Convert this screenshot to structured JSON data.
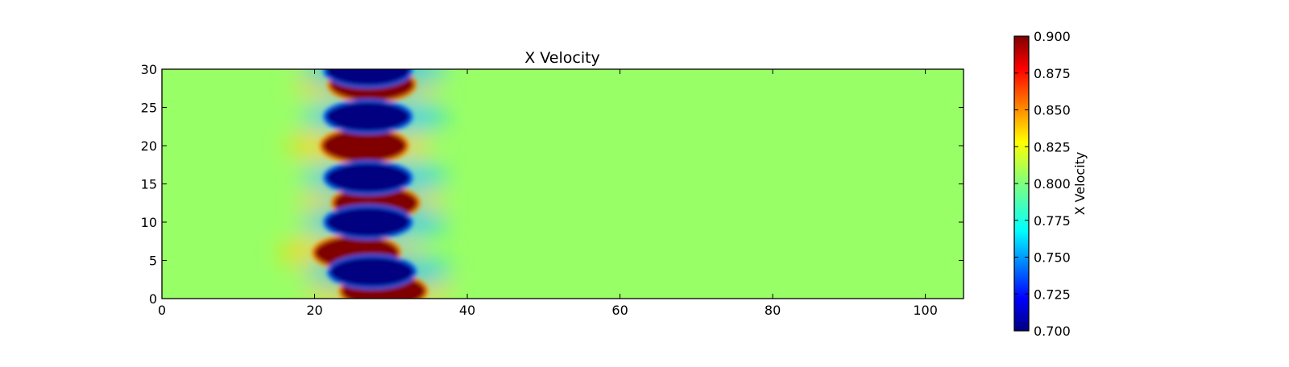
{
  "chart_data": {
    "type": "heatmap",
    "title": "X Velocity",
    "xlabel": "",
    "ylabel": "",
    "xlim": [
      0,
      105
    ],
    "ylim": [
      0,
      30
    ],
    "x_ticks": [
      0,
      20,
      40,
      60,
      80,
      100
    ],
    "y_ticks": [
      0,
      5,
      10,
      15,
      20,
      25,
      30
    ],
    "grid": false,
    "colormap": "jet",
    "colorbar": {
      "label": "X Velocity",
      "range": [
        0.7,
        0.9
      ],
      "ticks": [
        "0.700",
        "0.725",
        "0.750",
        "0.775",
        "0.800",
        "0.825",
        "0.850",
        "0.875",
        "0.900"
      ],
      "placement": "right"
    },
    "background_value": 0.805,
    "vortex_street": {
      "x_range": [
        21,
        34
      ],
      "red_lobes": [
        {
          "x": 27.5,
          "y": 28.0
        },
        {
          "x": 26.5,
          "y": 20.0
        },
        {
          "x": 28.0,
          "y": 12.5
        },
        {
          "x": 25.5,
          "y": 6.0
        },
        {
          "x": 29.0,
          "y": 1.0
        }
      ],
      "blue_lobes": [
        {
          "x": 27.0,
          "y": 29.8
        },
        {
          "x": 27.0,
          "y": 23.8
        },
        {
          "x": 27.0,
          "y": 15.8
        },
        {
          "x": 27.0,
          "y": 10.0
        },
        {
          "x": 27.5,
          "y": 3.5
        }
      ]
    }
  }
}
